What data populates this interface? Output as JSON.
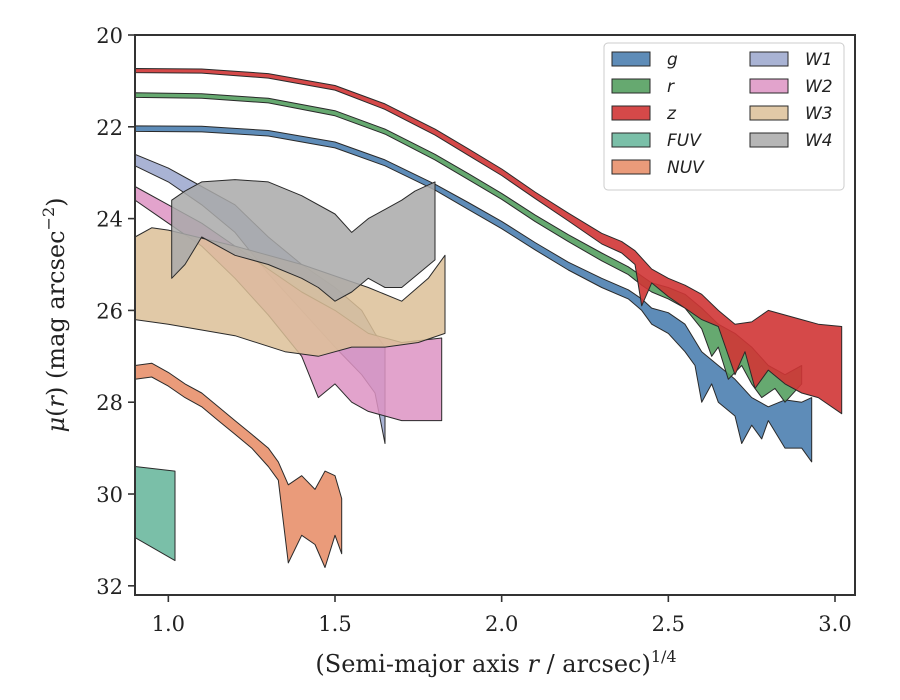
{
  "chart_data": {
    "type": "area",
    "xlabel": "(Semi-major axis r / arcsec)^{1/4}",
    "ylabel": "μ(r) (mag arcsec^{−2})",
    "xlim": [
      0.9,
      3.06
    ],
    "ylim": [
      32.2,
      20
    ],
    "y_inverted": true,
    "grid": false,
    "legend_position": "top-right",
    "legend_columns": 2,
    "xticks": [
      1.0,
      1.5,
      2.0,
      2.5,
      3.0
    ],
    "xtick_labels": [
      "1.0",
      "1.5",
      "2.0",
      "2.5",
      "3.0"
    ],
    "yticks": [
      20,
      22,
      24,
      26,
      28,
      30,
      32
    ],
    "ytick_labels": [
      "20",
      "22",
      "24",
      "26",
      "28",
      "30",
      "32"
    ],
    "series": [
      {
        "name": "g",
        "color": "#4c7fb0",
        "alpha": 0.9,
        "upper": [
          [
            0.9,
            21.98
          ],
          [
            1.1,
            21.99
          ],
          [
            1.3,
            22.08
          ],
          [
            1.5,
            22.33
          ],
          [
            1.65,
            22.72
          ],
          [
            1.8,
            23.25
          ],
          [
            1.9,
            23.65
          ],
          [
            2.0,
            24.06
          ],
          [
            2.1,
            24.52
          ],
          [
            2.2,
            24.95
          ],
          [
            2.3,
            25.3
          ],
          [
            2.38,
            25.55
          ],
          [
            2.42,
            25.75
          ],
          [
            2.45,
            25.95
          ],
          [
            2.5,
            26.05
          ],
          [
            2.55,
            26.3
          ],
          [
            2.6,
            26.9
          ],
          [
            2.65,
            27.2
          ],
          [
            2.7,
            27.5
          ],
          [
            2.75,
            27.9
          ],
          [
            2.8,
            28.1
          ],
          [
            2.85,
            27.95
          ],
          [
            2.9,
            28.0
          ],
          [
            2.93,
            27.9
          ]
        ],
        "lower": [
          [
            0.9,
            22.1
          ],
          [
            1.1,
            22.11
          ],
          [
            1.3,
            22.2
          ],
          [
            1.5,
            22.46
          ],
          [
            1.65,
            22.85
          ],
          [
            1.8,
            23.38
          ],
          [
            1.9,
            23.8
          ],
          [
            2.0,
            24.22
          ],
          [
            2.1,
            24.68
          ],
          [
            2.2,
            25.12
          ],
          [
            2.3,
            25.5
          ],
          [
            2.38,
            25.75
          ],
          [
            2.42,
            26.0
          ],
          [
            2.45,
            26.3
          ],
          [
            2.5,
            26.5
          ],
          [
            2.55,
            26.9
          ],
          [
            2.58,
            27.2
          ],
          [
            2.6,
            28.0
          ],
          [
            2.63,
            27.6
          ],
          [
            2.65,
            28.0
          ],
          [
            2.7,
            28.3
          ],
          [
            2.72,
            28.9
          ],
          [
            2.75,
            28.5
          ],
          [
            2.78,
            28.8
          ],
          [
            2.8,
            28.4
          ],
          [
            2.85,
            29.0
          ],
          [
            2.9,
            29.0
          ],
          [
            2.93,
            29.3
          ]
        ]
      },
      {
        "name": "r",
        "color": "#55a060",
        "alpha": 0.9,
        "upper": [
          [
            0.9,
            21.26
          ],
          [
            1.1,
            21.28
          ],
          [
            1.3,
            21.38
          ],
          [
            1.5,
            21.65
          ],
          [
            1.65,
            22.05
          ],
          [
            1.8,
            22.6
          ],
          [
            1.9,
            23.02
          ],
          [
            2.0,
            23.45
          ],
          [
            2.1,
            23.92
          ],
          [
            2.2,
            24.35
          ],
          [
            2.3,
            24.75
          ],
          [
            2.38,
            25.05
          ],
          [
            2.42,
            25.25
          ],
          [
            2.45,
            25.4
          ],
          [
            2.5,
            25.5
          ],
          [
            2.55,
            25.65
          ],
          [
            2.6,
            25.95
          ],
          [
            2.65,
            26.3
          ],
          [
            2.7,
            26.5
          ],
          [
            2.75,
            26.8
          ],
          [
            2.8,
            27.2
          ],
          [
            2.85,
            27.4
          ],
          [
            2.9,
            27.2
          ]
        ],
        "lower": [
          [
            0.9,
            21.36
          ],
          [
            1.1,
            21.38
          ],
          [
            1.3,
            21.48
          ],
          [
            1.5,
            21.76
          ],
          [
            1.65,
            22.16
          ],
          [
            1.8,
            22.72
          ],
          [
            1.9,
            23.15
          ],
          [
            2.0,
            23.58
          ],
          [
            2.1,
            24.06
          ],
          [
            2.2,
            24.5
          ],
          [
            2.3,
            24.92
          ],
          [
            2.38,
            25.22
          ],
          [
            2.42,
            25.45
          ],
          [
            2.45,
            25.6
          ],
          [
            2.5,
            25.75
          ],
          [
            2.55,
            25.95
          ],
          [
            2.6,
            26.4
          ],
          [
            2.63,
            27.0
          ],
          [
            2.65,
            26.8
          ],
          [
            2.68,
            27.5
          ],
          [
            2.72,
            27.2
          ],
          [
            2.75,
            27.6
          ],
          [
            2.78,
            27.9
          ],
          [
            2.82,
            27.7
          ],
          [
            2.85,
            28.0
          ],
          [
            2.9,
            27.6
          ]
        ]
      },
      {
        "name": "z",
        "color": "#d03535",
        "alpha": 0.9,
        "upper": [
          [
            0.9,
            20.73
          ],
          [
            1.1,
            20.74
          ],
          [
            1.3,
            20.84
          ],
          [
            1.5,
            21.1
          ],
          [
            1.65,
            21.5
          ],
          [
            1.8,
            22.05
          ],
          [
            1.9,
            22.48
          ],
          [
            2.0,
            22.92
          ],
          [
            2.1,
            23.42
          ],
          [
            2.2,
            23.88
          ],
          [
            2.3,
            24.32
          ],
          [
            2.36,
            24.5
          ],
          [
            2.4,
            24.7
          ],
          [
            2.45,
            25.1
          ],
          [
            2.5,
            25.3
          ],
          [
            2.55,
            25.45
          ],
          [
            2.6,
            25.65
          ],
          [
            2.65,
            26.0
          ],
          [
            2.7,
            26.3
          ],
          [
            2.75,
            26.25
          ],
          [
            2.8,
            26.0
          ],
          [
            2.85,
            26.1
          ],
          [
            2.9,
            26.2
          ],
          [
            2.95,
            26.3
          ],
          [
            3.02,
            26.35
          ]
        ],
        "lower": [
          [
            0.9,
            20.82
          ],
          [
            1.1,
            20.83
          ],
          [
            1.3,
            20.94
          ],
          [
            1.5,
            21.2
          ],
          [
            1.65,
            21.62
          ],
          [
            1.8,
            22.18
          ],
          [
            1.9,
            22.62
          ],
          [
            2.0,
            23.06
          ],
          [
            2.1,
            23.56
          ],
          [
            2.2,
            24.05
          ],
          [
            2.3,
            24.55
          ],
          [
            2.36,
            24.75
          ],
          [
            2.4,
            25.0
          ],
          [
            2.42,
            25.9
          ],
          [
            2.45,
            25.4
          ],
          [
            2.5,
            25.7
          ],
          [
            2.55,
            25.95
          ],
          [
            2.6,
            26.2
          ],
          [
            2.65,
            26.35
          ],
          [
            2.7,
            27.4
          ],
          [
            2.73,
            26.9
          ],
          [
            2.76,
            27.7
          ],
          [
            2.8,
            27.3
          ],
          [
            2.85,
            27.6
          ],
          [
            2.9,
            27.8
          ],
          [
            2.95,
            27.9
          ],
          [
            3.02,
            28.25
          ]
        ]
      },
      {
        "name": "FUV",
        "color": "#6cb89e",
        "alpha": 0.9,
        "upper": [
          [
            0.9,
            29.4
          ],
          [
            1.02,
            29.5
          ]
        ],
        "lower": [
          [
            0.9,
            30.95
          ],
          [
            1.02,
            31.45
          ]
        ]
      },
      {
        "name": "NUV",
        "color": "#e8906c",
        "alpha": 0.9,
        "upper": [
          [
            0.9,
            27.2
          ],
          [
            0.95,
            27.15
          ],
          [
            1.0,
            27.35
          ],
          [
            1.05,
            27.6
          ],
          [
            1.1,
            27.8
          ],
          [
            1.15,
            28.1
          ],
          [
            1.2,
            28.4
          ],
          [
            1.25,
            28.7
          ],
          [
            1.3,
            29.0
          ],
          [
            1.33,
            29.3
          ],
          [
            1.36,
            29.8
          ],
          [
            1.4,
            29.6
          ],
          [
            1.44,
            29.9
          ],
          [
            1.47,
            29.5
          ],
          [
            1.5,
            29.6
          ],
          [
            1.52,
            30.1
          ]
        ],
        "lower": [
          [
            0.9,
            27.5
          ],
          [
            0.95,
            27.45
          ],
          [
            1.0,
            27.65
          ],
          [
            1.05,
            27.9
          ],
          [
            1.1,
            28.1
          ],
          [
            1.15,
            28.4
          ],
          [
            1.2,
            28.7
          ],
          [
            1.25,
            29.0
          ],
          [
            1.3,
            29.4
          ],
          [
            1.33,
            29.7
          ],
          [
            1.36,
            31.5
          ],
          [
            1.4,
            30.9
          ],
          [
            1.44,
            31.1
          ],
          [
            1.47,
            31.6
          ],
          [
            1.5,
            30.9
          ],
          [
            1.52,
            31.3
          ]
        ]
      },
      {
        "name": "W1",
        "color": "#9aa6cc",
        "alpha": 0.85,
        "upper": [
          [
            0.9,
            22.6
          ],
          [
            1.0,
            22.9
          ],
          [
            1.1,
            23.3
          ],
          [
            1.2,
            23.7
          ],
          [
            1.3,
            24.4
          ],
          [
            1.4,
            25.0
          ],
          [
            1.5,
            25.5
          ],
          [
            1.58,
            26.0
          ],
          [
            1.62,
            26.5
          ],
          [
            1.65,
            26.8
          ]
        ],
        "lower": [
          [
            0.9,
            22.85
          ],
          [
            1.0,
            23.2
          ],
          [
            1.1,
            23.7
          ],
          [
            1.2,
            24.3
          ],
          [
            1.3,
            25.2
          ],
          [
            1.4,
            26.0
          ],
          [
            1.5,
            26.8
          ],
          [
            1.58,
            27.4
          ],
          [
            1.62,
            27.8
          ],
          [
            1.65,
            28.9
          ]
        ]
      },
      {
        "name": "W2",
        "color": "#dd93c3",
        "alpha": 0.85,
        "upper": [
          [
            0.9,
            23.3
          ],
          [
            1.0,
            23.7
          ],
          [
            1.1,
            24.1
          ],
          [
            1.2,
            24.6
          ],
          [
            1.3,
            25.1
          ],
          [
            1.4,
            25.6
          ],
          [
            1.5,
            26.0
          ],
          [
            1.6,
            26.5
          ],
          [
            1.7,
            26.7
          ],
          [
            1.82,
            26.6
          ]
        ],
        "lower": [
          [
            0.9,
            23.6
          ],
          [
            1.0,
            24.1
          ],
          [
            1.1,
            24.6
          ],
          [
            1.2,
            25.3
          ],
          [
            1.3,
            26.1
          ],
          [
            1.4,
            27.0
          ],
          [
            1.45,
            27.9
          ],
          [
            1.5,
            27.6
          ],
          [
            1.55,
            28.0
          ],
          [
            1.6,
            28.2
          ],
          [
            1.65,
            28.3
          ],
          [
            1.7,
            28.4
          ],
          [
            1.82,
            28.4
          ]
        ]
      },
      {
        "name": "W3",
        "color": "#dcbf98",
        "alpha": 0.85,
        "upper": [
          [
            0.9,
            24.4
          ],
          [
            0.95,
            24.2
          ],
          [
            1.0,
            24.25
          ],
          [
            1.2,
            24.6
          ],
          [
            1.4,
            25.0
          ],
          [
            1.6,
            25.5
          ],
          [
            1.7,
            25.8
          ],
          [
            1.78,
            25.3
          ],
          [
            1.83,
            24.8
          ]
        ],
        "lower": [
          [
            0.9,
            26.2
          ],
          [
            1.0,
            26.3
          ],
          [
            1.2,
            26.55
          ],
          [
            1.35,
            26.9
          ],
          [
            1.45,
            27.0
          ],
          [
            1.55,
            26.8
          ],
          [
            1.65,
            26.8
          ],
          [
            1.75,
            26.7
          ],
          [
            1.83,
            26.5
          ]
        ]
      },
      {
        "name": "W4",
        "color": "#a9a9a9",
        "alpha": 0.85,
        "upper": [
          [
            1.01,
            23.6
          ],
          [
            1.05,
            23.4
          ],
          [
            1.1,
            23.2
          ],
          [
            1.2,
            23.15
          ],
          [
            1.3,
            23.2
          ],
          [
            1.4,
            23.5
          ],
          [
            1.5,
            23.9
          ],
          [
            1.55,
            24.3
          ],
          [
            1.6,
            24.0
          ],
          [
            1.65,
            23.8
          ],
          [
            1.7,
            23.6
          ],
          [
            1.74,
            23.4
          ],
          [
            1.8,
            23.2
          ]
        ],
        "lower": [
          [
            1.01,
            25.3
          ],
          [
            1.05,
            25.0
          ],
          [
            1.1,
            24.4
          ],
          [
            1.2,
            24.8
          ],
          [
            1.3,
            25.0
          ],
          [
            1.4,
            25.3
          ],
          [
            1.45,
            25.5
          ],
          [
            1.5,
            25.8
          ],
          [
            1.55,
            25.6
          ],
          [
            1.6,
            25.3
          ],
          [
            1.65,
            25.5
          ],
          [
            1.7,
            25.5
          ],
          [
            1.75,
            25.2
          ],
          [
            1.8,
            24.9
          ]
        ]
      }
    ]
  }
}
